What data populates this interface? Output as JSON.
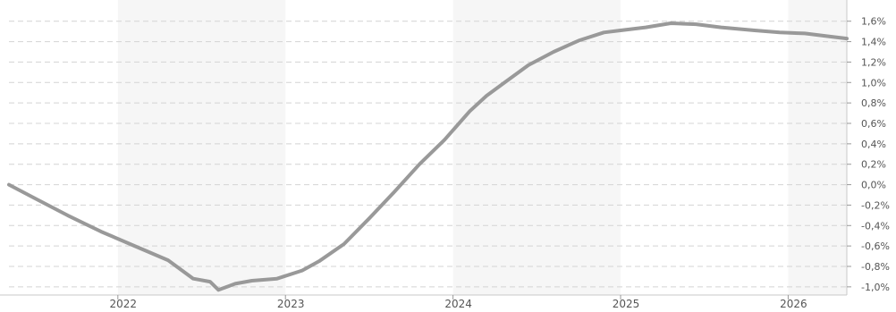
{
  "chart_data": {
    "type": "line",
    "title": "",
    "xlabel": "",
    "ylabel": "",
    "x_tick_labels": [
      "2022",
      "2023",
      "2024",
      "2025",
      "2026"
    ],
    "x_ticks": [
      2022.0,
      2023.0,
      2024.0,
      2025.0,
      2026.0
    ],
    "xlim": [
      2021.35,
      2026.35
    ],
    "y_tick_labels": [
      "1,6%",
      "1,4%",
      "1,2%",
      "1,0%",
      "0,8%",
      "0,6%",
      "0,4%",
      "0,2%",
      "0,0%",
      "-0,2%",
      "-0,4%",
      "-0,6%",
      "-0,8%",
      "-1,0%"
    ],
    "y_ticks": [
      1.6,
      1.4,
      1.2,
      1.0,
      0.8,
      0.6,
      0.4,
      0.2,
      0.0,
      -0.2,
      -0.4,
      -0.6,
      -0.8,
      -1.0
    ],
    "ylim": [
      -1.08,
      1.72
    ],
    "y_unit": "%",
    "grid": true,
    "alternating_year_bands": true,
    "colors": {
      "series": "#999999",
      "band": "#f6f6f6",
      "grid": "#d4d4d4",
      "axis": "#c8c8c8",
      "text": "#555555"
    },
    "series": [
      {
        "name": "",
        "x": [
          2021.35,
          2021.5,
          2021.7,
          2021.9,
          2022.1,
          2022.3,
          2022.45,
          2022.55,
          2022.6,
          2022.7,
          2022.8,
          2022.95,
          2023.1,
          2023.2,
          2023.35,
          2023.5,
          2023.65,
          2023.8,
          2023.95,
          2024.1,
          2024.2,
          2024.3,
          2024.45,
          2024.6,
          2024.75,
          2024.9,
          2025.0,
          2025.15,
          2025.3,
          2025.45,
          2025.6,
          2025.8,
          2025.95,
          2026.1,
          2026.25,
          2026.35
        ],
        "values": [
          0.0,
          -0.13,
          -0.3,
          -0.46,
          -0.6,
          -0.74,
          -0.92,
          -0.95,
          -1.03,
          -0.97,
          -0.94,
          -0.92,
          -0.84,
          -0.75,
          -0.58,
          -0.33,
          -0.07,
          0.2,
          0.44,
          0.72,
          0.87,
          0.99,
          1.17,
          1.3,
          1.41,
          1.49,
          1.51,
          1.54,
          1.58,
          1.57,
          1.54,
          1.51,
          1.49,
          1.48,
          1.45,
          1.43
        ]
      }
    ]
  }
}
